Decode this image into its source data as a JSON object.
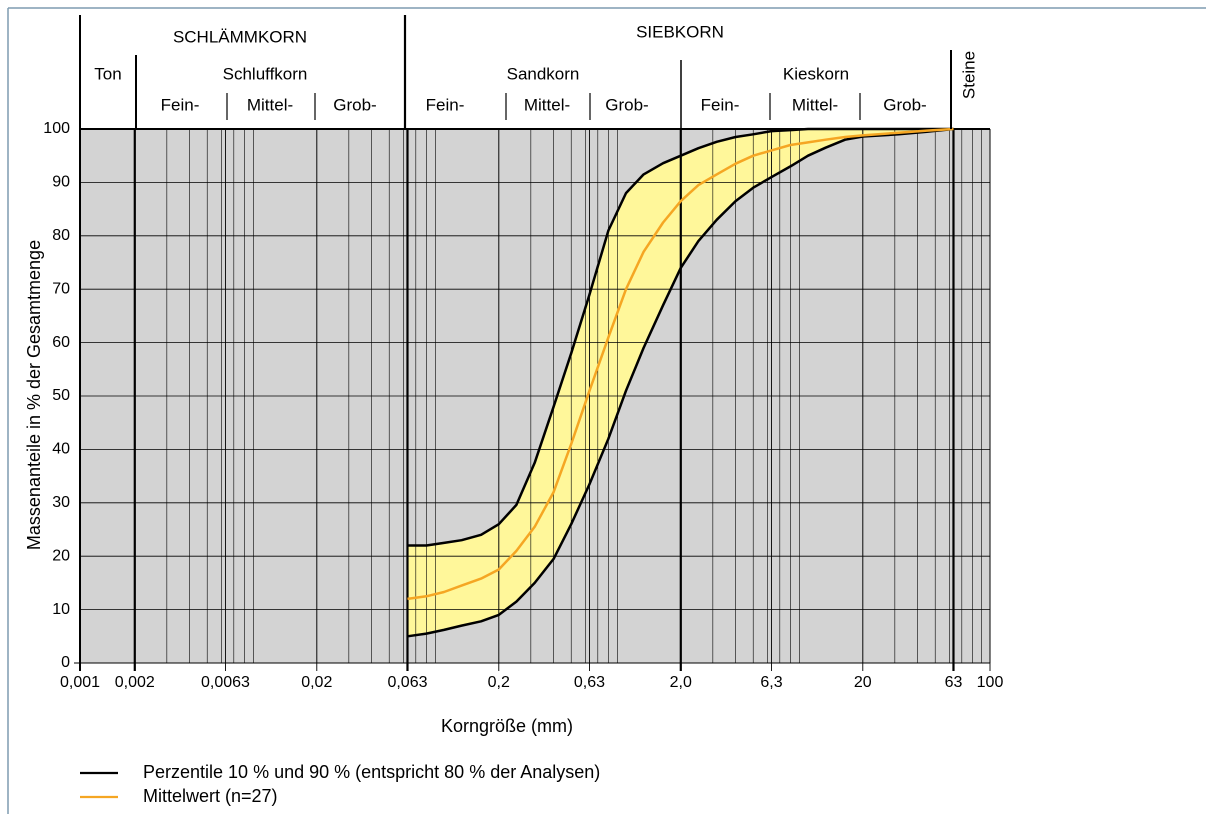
{
  "chart_data": {
    "type": "line",
    "header": {
      "classes": [
        {
          "label": "SCHLÄMMKORN"
        },
        {
          "label": "SIEBKORN"
        }
      ],
      "groups": [
        {
          "label": "Ton"
        },
        {
          "label": "Schluffkorn",
          "sub": [
            "Fein-",
            "Mittel-",
            "Grob-"
          ]
        },
        {
          "label": "Sandkorn",
          "sub": [
            "Fein-",
            "Mittel-",
            "Grob-"
          ]
        },
        {
          "label": "Kieskorn",
          "sub": [
            "Fein-",
            "Mittel-",
            "Grob-"
          ]
        },
        {
          "label": "Steine"
        }
      ]
    },
    "x_label": "Korngröße (mm)",
    "y_label": "Massenanteile in % der Gesamtmenge",
    "xscale": "log",
    "xlim": [
      0.001,
      100
    ],
    "ylim": [
      0,
      100
    ],
    "xticks": [
      {
        "value": 0.001,
        "label": "0,001"
      },
      {
        "value": 0.002,
        "label": "0,002"
      },
      {
        "value": 0.0063,
        "label": "0,0063"
      },
      {
        "value": 0.02,
        "label": "0,02"
      },
      {
        "value": 0.063,
        "label": "0,063"
      },
      {
        "value": 0.2,
        "label": "0,2"
      },
      {
        "value": 0.63,
        "label": "0,63"
      },
      {
        "value": 2.0,
        "label": "2,0"
      },
      {
        "value": 6.3,
        "label": "6,3"
      },
      20,
      63,
      100
    ],
    "yticks": [
      0,
      10,
      20,
      30,
      40,
      50,
      60,
      70,
      80,
      90,
      100
    ],
    "grid": true,
    "x": [
      0.063,
      0.08,
      0.1,
      0.125,
      0.16,
      0.2,
      0.25,
      0.315,
      0.4,
      0.5,
      0.63,
      0.8,
      1.0,
      1.25,
      1.6,
      2.0,
      2.5,
      3.15,
      4,
      5,
      6.3,
      8,
      10,
      12.5,
      16,
      20,
      31.5,
      45,
      63
    ],
    "series": [
      {
        "name": "Perzentile 10 % und 90 % (entspricht 80 % der Analysen)",
        "color": "#000000",
        "fill": "#fff79a",
        "upper": [
          22,
          22,
          22.5,
          23,
          24,
          26,
          29.6,
          37.5,
          48,
          58,
          69,
          81,
          88,
          91.5,
          93.6,
          95,
          96.4,
          97.6,
          98.5,
          99,
          99.6,
          99.8,
          100,
          100,
          100,
          100,
          100,
          100,
          100
        ],
        "lower": [
          5,
          5.5,
          6.2,
          7,
          7.8,
          9,
          11.5,
          15,
          19.5,
          26,
          33.5,
          42,
          51,
          59,
          67,
          74,
          79,
          83,
          86.5,
          89,
          91,
          93,
          95,
          96.5,
          98,
          98.6,
          99,
          99.5,
          100
        ]
      },
      {
        "name": "Mittelwert (n=27)",
        "color": "#f5a623",
        "values": [
          12,
          12.5,
          13.3,
          14.5,
          15.8,
          17.5,
          21,
          25.5,
          32,
          41,
          51,
          61,
          70,
          77,
          82.5,
          86.5,
          89.5,
          91.5,
          93.5,
          95,
          96,
          97,
          97.5,
          98,
          98.5,
          98.8,
          99.3,
          99.7,
          100
        ]
      }
    ]
  }
}
